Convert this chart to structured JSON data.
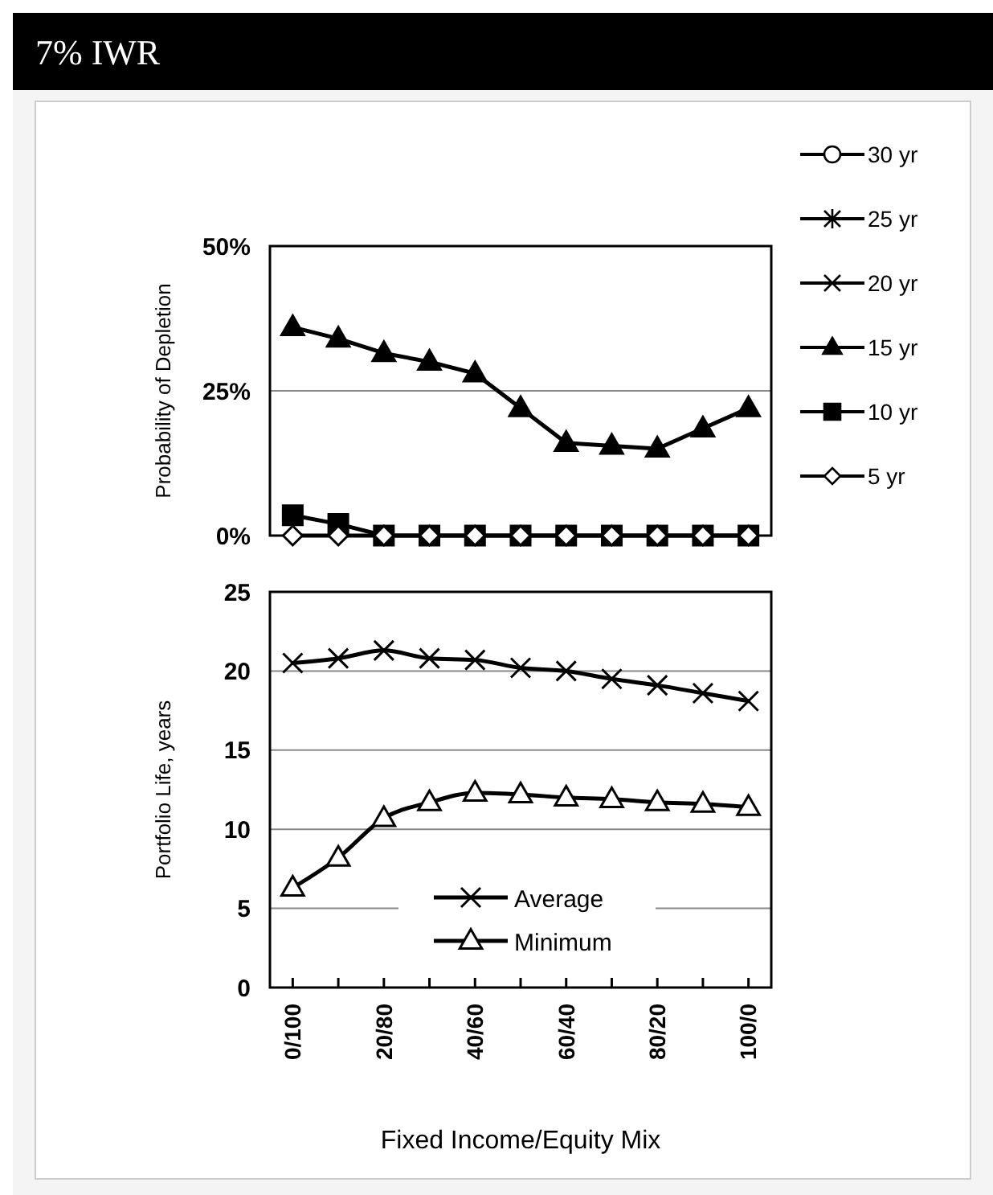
{
  "chart_data": [
    {
      "type": "line",
      "title": "7% IWR",
      "ylabel": "Probability of Depletion",
      "categories": [
        null,
        null,
        null,
        null,
        null,
        null,
        null,
        null,
        null,
        null,
        null
      ],
      "ylim": [
        0,
        50
      ],
      "yticks": [
        {
          "value": 0,
          "label": "0%"
        },
        {
          "value": 25,
          "label": "25%"
        },
        {
          "value": 50,
          "label": "50%"
        }
      ],
      "grid": "y",
      "legend": "right",
      "tick_labels": "y",
      "series": [
        {
          "name": "30 yr",
          "color": "#000000",
          "marker": "circle",
          "values": [
            null,
            null,
            null,
            null,
            null,
            null,
            null,
            null,
            null,
            null,
            null
          ]
        },
        {
          "name": "25 yr",
          "color": "#000000",
          "marker": "star",
          "values": [
            null,
            null,
            null,
            null,
            null,
            null,
            null,
            null,
            null,
            null,
            null
          ]
        },
        {
          "name": "20 yr",
          "color": "#000000",
          "marker": "cross",
          "values": [
            null,
            null,
            null,
            null,
            null,
            null,
            null,
            null,
            null,
            null,
            null
          ]
        },
        {
          "name": "15 yr",
          "color": "#000000",
          "marker": "triangle",
          "values": [
            36,
            34,
            31.5,
            30,
            28,
            22,
            16,
            15.5,
            15,
            18.5,
            22
          ]
        },
        {
          "name": "10 yr",
          "color": "#000000",
          "marker": "square",
          "values": [
            3.5,
            2,
            0,
            0,
            0,
            0,
            0,
            0,
            0,
            0,
            0
          ]
        },
        {
          "name": "5 yr",
          "color": "#000000",
          "marker": "diamond",
          "values": [
            0,
            0,
            0,
            0,
            0,
            0,
            0,
            0,
            0,
            0,
            0
          ]
        }
      ]
    },
    {
      "type": "line",
      "ylabel": "Portfolio Life, years",
      "xlabel": "Fixed Income/Equity Mix",
      "categories": [
        "0/100",
        null,
        "20/80",
        null,
        "40/60",
        null,
        "60/40",
        null,
        "80/20",
        null,
        "100/0"
      ],
      "ylim": [
        0,
        25
      ],
      "yticks": [
        0,
        5,
        10,
        15,
        20,
        25
      ],
      "grid": "y",
      "legend": "bottom",
      "series": [
        {
          "name": "Average",
          "color": "#000000",
          "marker": "cross",
          "values": [
            20.5,
            20.8,
            21.3,
            20.8,
            20.7,
            20.2,
            20.0,
            19.5,
            19.1,
            18.6,
            18.1
          ]
        },
        {
          "name": "Minimum",
          "color": "#000000",
          "marker": "triangle",
          "values": [
            6.3,
            8.2,
            10.7,
            11.7,
            12.3,
            12.2,
            12.0,
            11.9,
            11.7,
            11.6,
            11.4
          ]
        }
      ]
    }
  ]
}
